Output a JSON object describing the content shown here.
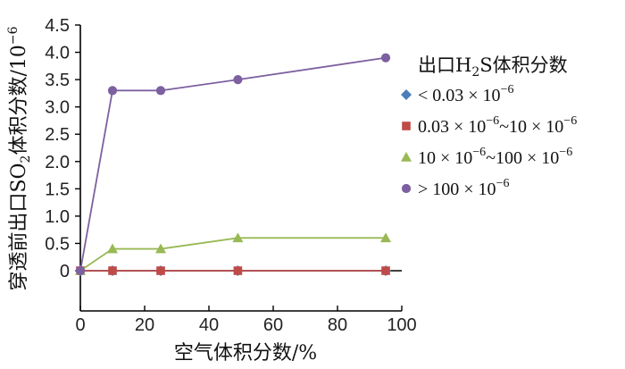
{
  "chart_data": {
    "type": "line",
    "xlabel": "空气体积分数/%",
    "ylabel": {
      "pre": "穿透前出口SO",
      "sub": "2",
      "post": "体积分数/10",
      "sup": "−6"
    },
    "xlim": [
      0,
      100
    ],
    "ylim": [
      0,
      4.5
    ],
    "x_ticks": [
      "0",
      "20",
      "40",
      "60",
      "80",
      "100"
    ],
    "y_ticks": [
      "0",
      "0.5",
      "1.0",
      "1.5",
      "2.0",
      "2.5",
      "3.0",
      "3.5",
      "4.0",
      "4.5"
    ],
    "grid": false,
    "legend_position": "right",
    "legend_title": {
      "pre": "出口H",
      "sub": "2",
      "post": "S体积分数"
    },
    "x": [
      0,
      10,
      25,
      49,
      95
    ],
    "series": [
      {
        "name": {
          "pre": "< 0.03 × 10",
          "sup1": "−6",
          "mid": "",
          "sup2": ""
        },
        "marker": "diamond",
        "color": "#4a7ebb",
        "values": [
          0,
          0,
          0,
          0,
          0
        ]
      },
      {
        "name": {
          "pre": "0.03 × 10",
          "sup1": "−6",
          "mid": "~10 × 10",
          "sup2": "−6"
        },
        "marker": "square",
        "color": "#be4b48",
        "values": [
          0,
          0,
          0,
          0,
          0
        ]
      },
      {
        "name": {
          "pre": "10 × 10",
          "sup1": "−6",
          "mid": "~100 × 10",
          "sup2": "−6"
        },
        "marker": "triangle",
        "color": "#98b954",
        "values": [
          0,
          0.4,
          0.4,
          0.6,
          0.6
        ]
      },
      {
        "name": {
          "pre": "> 100 × 10",
          "sup1": "−6",
          "mid": "",
          "sup2": ""
        },
        "marker": "circle",
        "color": "#7d60a0",
        "values": [
          0,
          3.3,
          3.3,
          3.5,
          3.9
        ]
      }
    ]
  }
}
